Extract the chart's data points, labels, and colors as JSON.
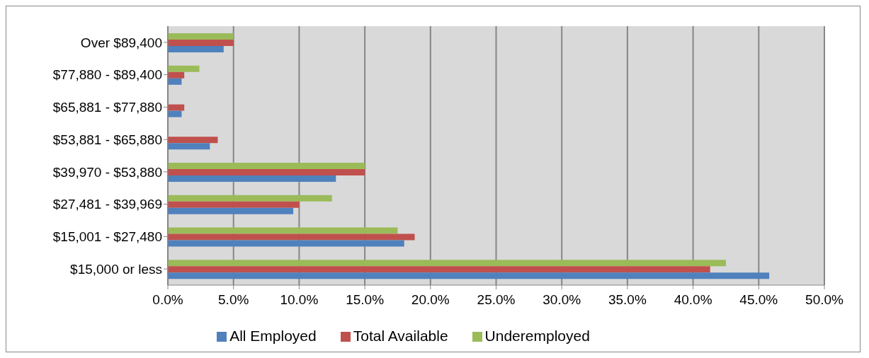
{
  "chart_data": {
    "type": "bar",
    "orientation": "horizontal",
    "categories": [
      "Over $89,400",
      "$77,880 - $89,400",
      "$65,881 - $77,880",
      "$53,881 - $65,880",
      "$39,970 - $53,880",
      "$27,481 - $39,969",
      "$15,001 - $27,480",
      "$15,000 or less"
    ],
    "series": [
      {
        "name": "Underemployed",
        "color": "#9bbb59",
        "values": [
          5.0,
          2.4,
          0,
          0,
          15.0,
          12.5,
          17.5,
          42.5
        ]
      },
      {
        "name": "Total Available",
        "color": "#c0504d",
        "values": [
          5.0,
          1.25,
          1.25,
          3.8,
          15.0,
          10.0,
          18.8,
          41.3
        ]
      },
      {
        "name": "All Employed",
        "color": "#4f81bd",
        "values": [
          4.25,
          1.05,
          1.05,
          3.2,
          12.8,
          9.55,
          18.0,
          45.8
        ]
      }
    ],
    "xlim": [
      0,
      50
    ],
    "xticks": [
      {
        "value": 0,
        "label": "0.0%"
      },
      {
        "value": 5,
        "label": "5.0%"
      },
      {
        "value": 10,
        "label": "10.0%"
      },
      {
        "value": 15,
        "label": "15.0%"
      },
      {
        "value": 20,
        "label": "20.0%"
      },
      {
        "value": 25,
        "label": "25.0%"
      },
      {
        "value": 30,
        "label": "30.0%"
      },
      {
        "value": 35,
        "label": "35.0%"
      },
      {
        "value": 40,
        "label": "40.0%"
      },
      {
        "value": 45,
        "label": "45.0%"
      },
      {
        "value": 50,
        "label": "50.0%"
      }
    ],
    "grid": "x",
    "legend": "bottom"
  }
}
